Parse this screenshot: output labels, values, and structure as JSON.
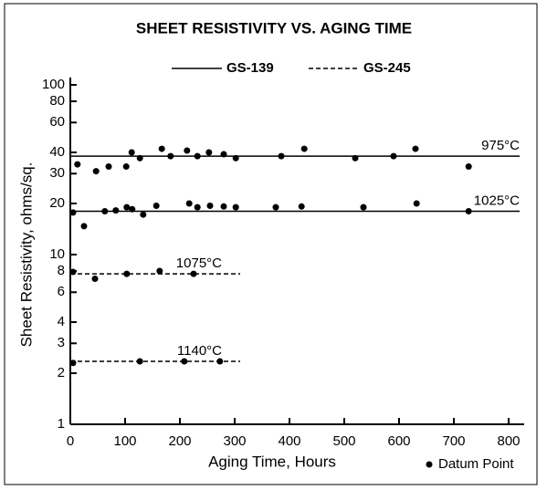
{
  "chart_data": {
    "type": "scatter",
    "title": "SHEET RESISTIVITY VS. AGING TIME",
    "x_label": "Aging Time, Hours",
    "y_label": "Sheet Resistivity, ohms/sq.",
    "datum_label": "Datum Point",
    "log_y": true,
    "color": "#000000",
    "xlim": [
      0,
      820
    ],
    "xticks": [
      0,
      100,
      200,
      300,
      400,
      500,
      600,
      700,
      800
    ],
    "ylim": [
      1,
      100
    ],
    "yticks": [
      1,
      2,
      3,
      4,
      6,
      8,
      10,
      20,
      30,
      40,
      60,
      80,
      100
    ],
    "series": [
      {
        "name": "GS-139",
        "style": "solid"
      },
      {
        "name": "GS-245",
        "style": "dashed"
      }
    ],
    "groups": [
      {
        "label": "975°C",
        "series": 0,
        "level": 38,
        "line_x": [
          0,
          820
        ],
        "x": [
          13,
          47,
          70,
          102,
          112,
          127,
          167,
          183,
          213,
          232,
          253,
          280,
          302,
          385,
          427,
          520,
          590,
          630,
          727
        ],
        "y": [
          34,
          31,
          33,
          33,
          40,
          37,
          42,
          38,
          41,
          38,
          40,
          39,
          37,
          38,
          42,
          37,
          38,
          42,
          33
        ]
      },
      {
        "label": "1025°C",
        "series": 0,
        "level": 18,
        "line_x": [
          0,
          820
        ],
        "x": [
          5,
          25,
          63,
          83,
          103,
          113,
          133,
          157,
          217,
          232,
          255,
          280,
          302,
          375,
          422,
          535,
          632,
          727
        ],
        "y": [
          17.7,
          14.7,
          18,
          18.2,
          19,
          18.5,
          17.2,
          19.4,
          20,
          19,
          19.4,
          19.2,
          19,
          19,
          19.2,
          19,
          20,
          18
        ]
      },
      {
        "label": "1075°C",
        "series": 1,
        "level": 7.7,
        "line_x": [
          0,
          310
        ],
        "x": [
          5,
          45,
          103,
          163,
          225
        ],
        "y": [
          7.9,
          7.2,
          7.7,
          8.0,
          7.7
        ]
      },
      {
        "label": "1140°C",
        "series": 1,
        "level": 2.35,
        "line_x": [
          0,
          310
        ],
        "x": [
          5,
          127,
          208,
          273
        ],
        "y": [
          2.3,
          2.35,
          2.35,
          2.35
        ]
      }
    ]
  }
}
